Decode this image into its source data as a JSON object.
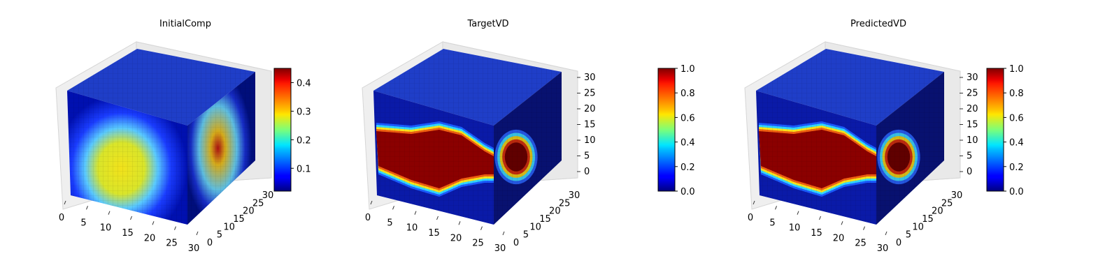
{
  "figure": {
    "type": "3d-voxel-panels",
    "colormap": "jet",
    "grid": true
  },
  "chart_data": [
    {
      "type": "heatmap",
      "title": "InitialComp",
      "x_ticks": [
        "0",
        "5",
        "10",
        "15",
        "20",
        "25",
        "30"
      ],
      "y_ticks": [
        "0",
        "5",
        "10",
        "15",
        "20",
        "25",
        "30"
      ],
      "z_ticks": [],
      "xlim": [
        0,
        32
      ],
      "ylim": [
        0,
        32
      ],
      "zlim": [
        0,
        32
      ],
      "colorbar": {
        "ticks": [
          "0.1",
          "0.2",
          "0.3",
          "0.4"
        ],
        "range": [
          0.02,
          0.45
        ]
      },
      "pattern": "diffuse",
      "peak_value": 0.3
    },
    {
      "type": "heatmap",
      "title": "TargetVD",
      "x_ticks": [
        "0",
        "5",
        "10",
        "15",
        "20",
        "25",
        "30"
      ],
      "y_ticks": [
        "0",
        "5",
        "10",
        "15",
        "20",
        "25",
        "30"
      ],
      "z_ticks": [
        "0",
        "5",
        "10",
        "15",
        "20",
        "25",
        "30"
      ],
      "xlim": [
        0,
        32
      ],
      "ylim": [
        0,
        32
      ],
      "zlim": [
        0,
        32
      ],
      "colorbar": {
        "ticks": [
          "0.0",
          "0.2",
          "0.4",
          "0.6",
          "0.8",
          "1.0"
        ],
        "range": [
          0.0,
          1.0
        ]
      },
      "pattern": "sharp",
      "peak_value": 1.0
    },
    {
      "type": "heatmap",
      "title": "PredictedVD",
      "x_ticks": [
        "0",
        "5",
        "10",
        "15",
        "20",
        "25",
        "30"
      ],
      "y_ticks": [
        "0",
        "5",
        "10",
        "15",
        "20",
        "25",
        "30"
      ],
      "z_ticks": [
        "0",
        "5",
        "10",
        "15",
        "20",
        "25",
        "30"
      ],
      "xlim": [
        0,
        32
      ],
      "ylim": [
        0,
        32
      ],
      "zlim": [
        0,
        32
      ],
      "colorbar": {
        "ticks": [
          "0.0",
          "0.2",
          "0.4",
          "0.6",
          "0.8",
          "1.0"
        ],
        "range": [
          0.0,
          1.0
        ]
      },
      "pattern": "sharp",
      "peak_value": 1.0
    }
  ]
}
